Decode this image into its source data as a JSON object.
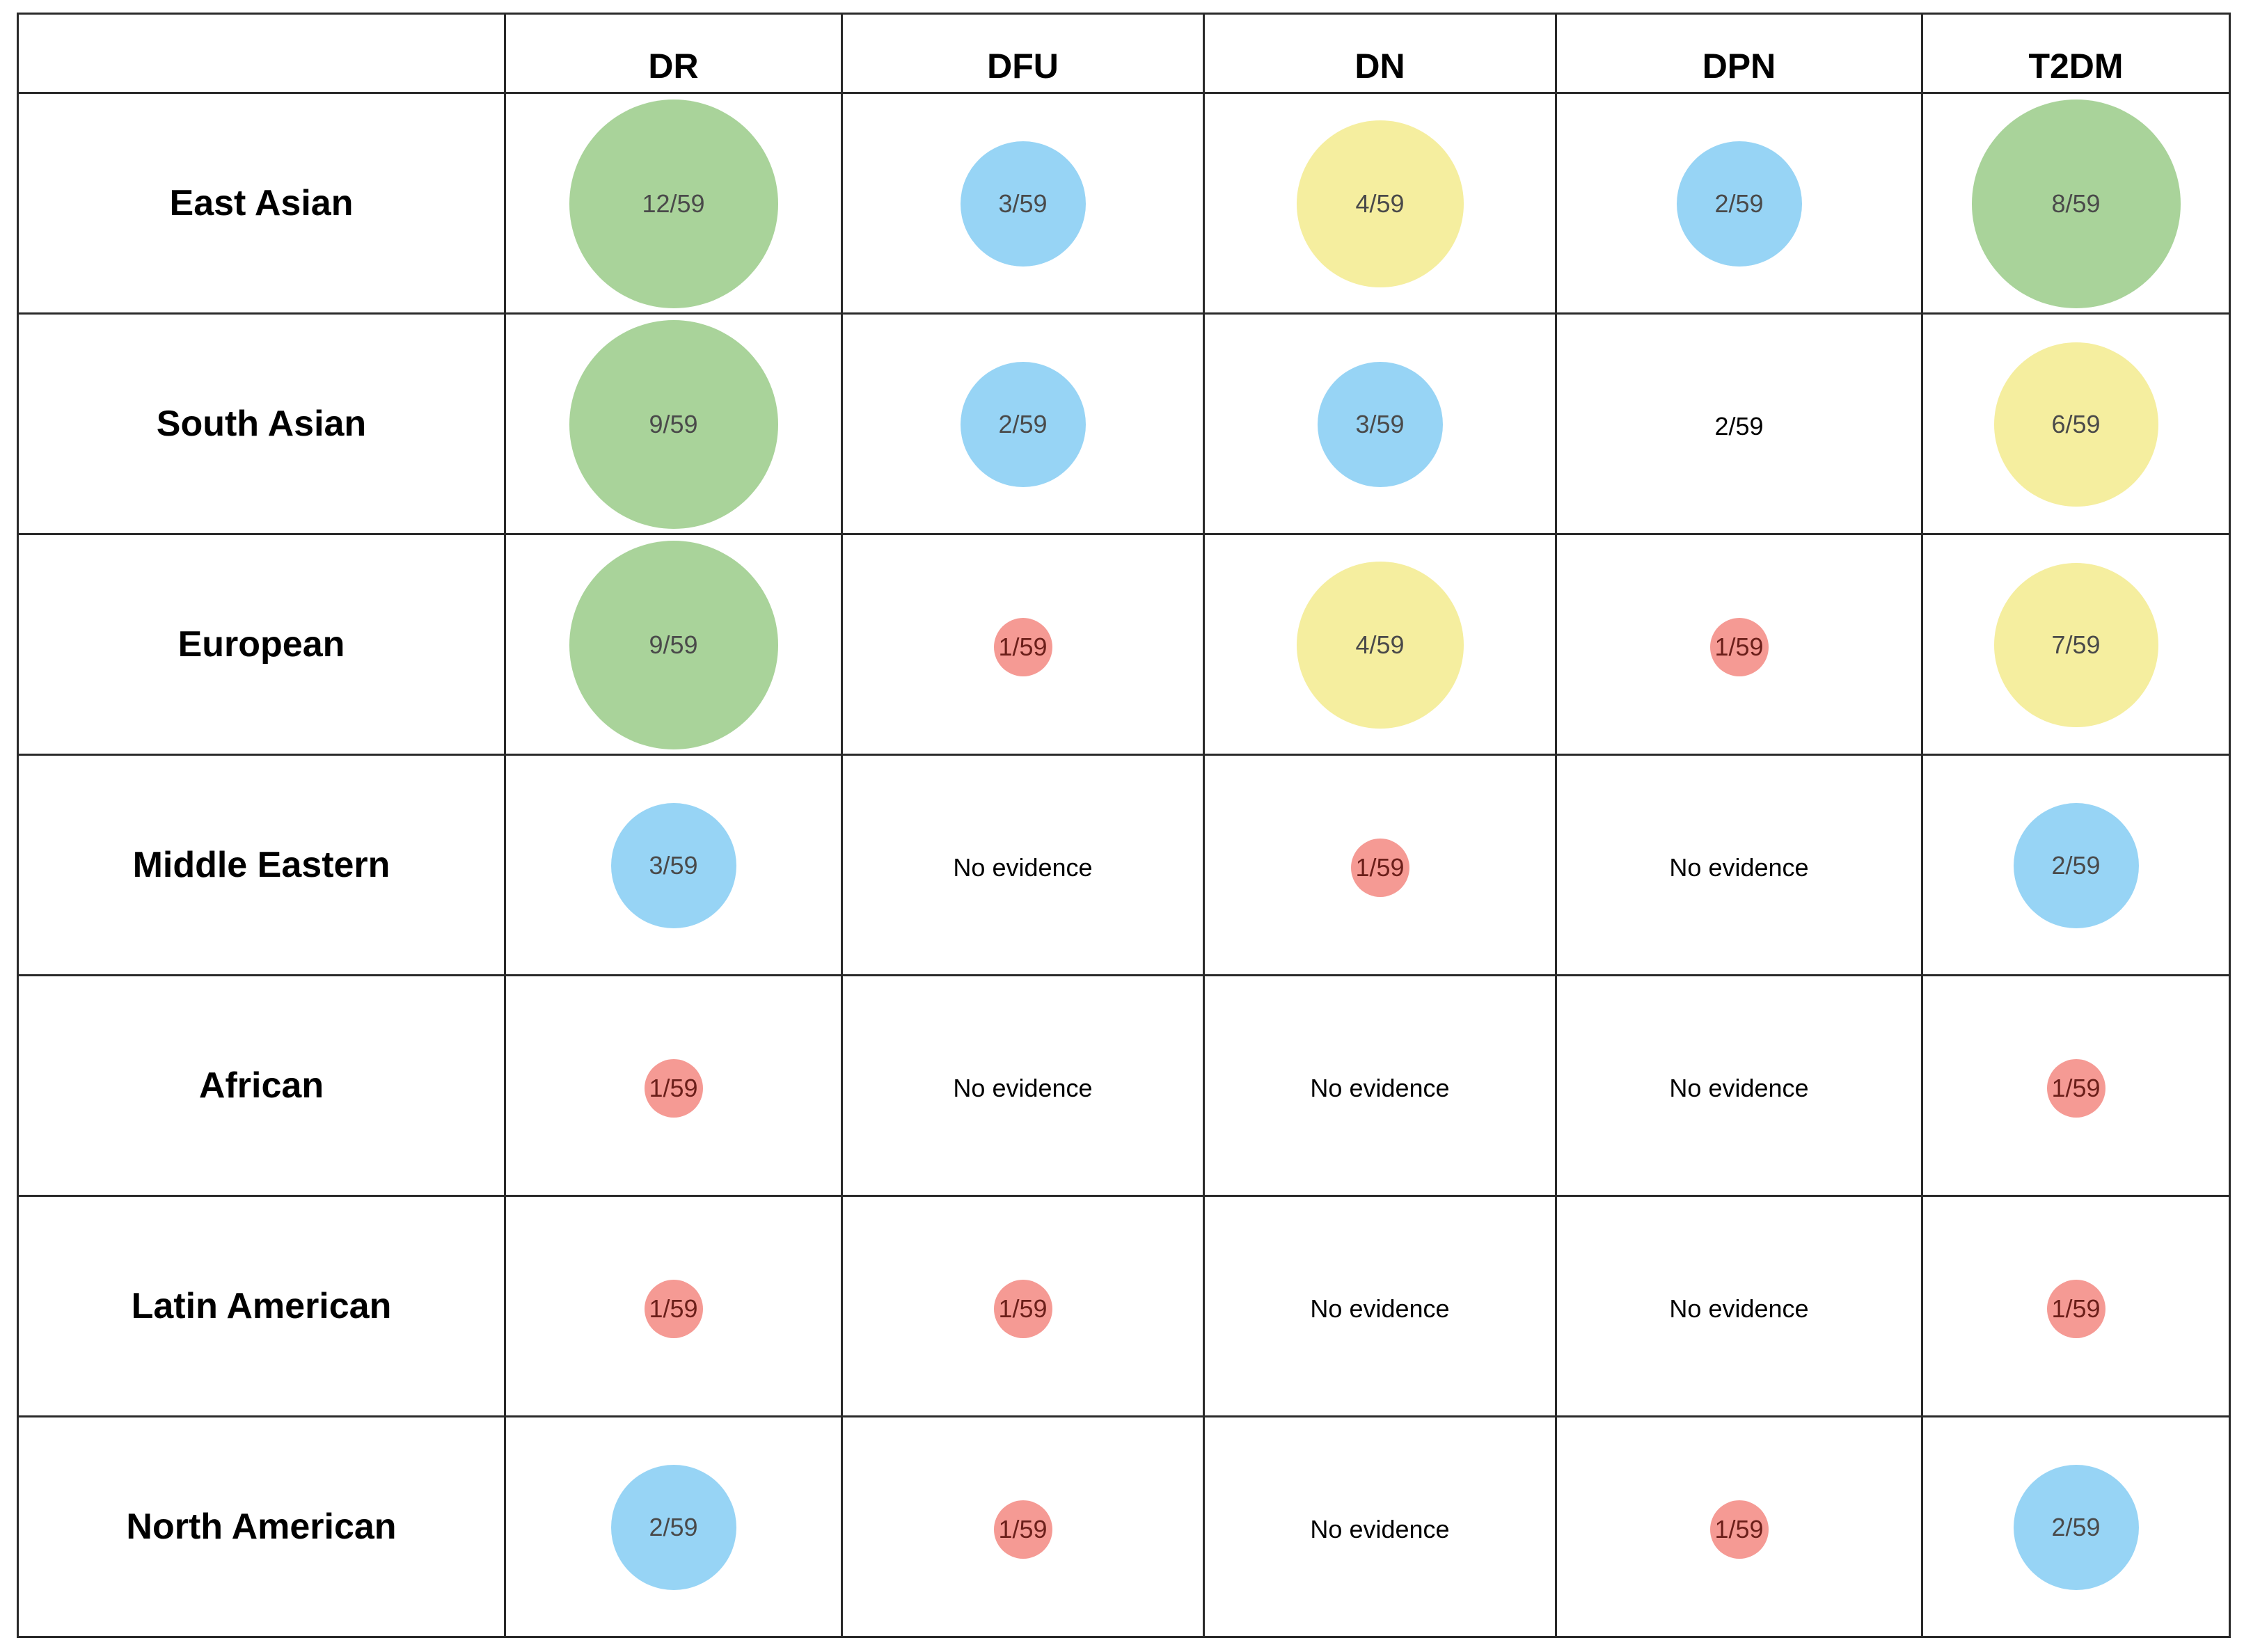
{
  "chart_data": {
    "type": "table",
    "corner": "",
    "columns": [
      "DR",
      "DFU",
      "DN",
      "DPN",
      "T2DM"
    ],
    "rows": [
      {
        "label": "East Asian",
        "cells": [
          {
            "value": 12,
            "text": "12/59",
            "color": "green"
          },
          {
            "value": 3,
            "text": "3/59",
            "color": "blue"
          },
          {
            "value": 4,
            "text": "4/59",
            "color": "yellow"
          },
          {
            "value": 2,
            "text": "2/59",
            "color": "blue"
          },
          {
            "value": 8,
            "text": "8/59",
            "color": "green"
          }
        ]
      },
      {
        "label": "South Asian",
        "cells": [
          {
            "value": 9,
            "text": "9/59",
            "color": "green"
          },
          {
            "value": 2,
            "text": "2/59",
            "color": "blue"
          },
          {
            "value": 3,
            "text": "3/59",
            "color": "blue"
          },
          {
            "value": 2,
            "text": "2/59",
            "color": "none"
          },
          {
            "value": 6,
            "text": "6/59",
            "color": "yellow"
          }
        ]
      },
      {
        "label": "European",
        "cells": [
          {
            "value": 9,
            "text": "9/59",
            "color": "green"
          },
          {
            "value": 1,
            "text": "1/59",
            "color": "red"
          },
          {
            "value": 4,
            "text": "4/59",
            "color": "yellow"
          },
          {
            "value": 1,
            "text": "1/59",
            "color": "red"
          },
          {
            "value": 7,
            "text": "7/59",
            "color": "yellow"
          }
        ]
      },
      {
        "label": "Middle Eastern",
        "cells": [
          {
            "value": 3,
            "text": "3/59",
            "color": "blue"
          },
          {
            "value": null,
            "text": "No evidence",
            "color": "none"
          },
          {
            "value": 1,
            "text": "1/59",
            "color": "red"
          },
          {
            "value": null,
            "text": "No evidence",
            "color": "none"
          },
          {
            "value": 2,
            "text": "2/59",
            "color": "blue"
          }
        ]
      },
      {
        "label": "African",
        "cells": [
          {
            "value": 1,
            "text": "1/59",
            "color": "red"
          },
          {
            "value": null,
            "text": "No evidence",
            "color": "none"
          },
          {
            "value": null,
            "text": "No evidence",
            "color": "none"
          },
          {
            "value": null,
            "text": "No evidence",
            "color": "none"
          },
          {
            "value": 1,
            "text": "1/59",
            "color": "red"
          }
        ]
      },
      {
        "label": "Latin American",
        "cells": [
          {
            "value": 1,
            "text": "1/59",
            "color": "red"
          },
          {
            "value": 1,
            "text": "1/59",
            "color": "red"
          },
          {
            "value": null,
            "text": "No evidence",
            "color": "none"
          },
          {
            "value": null,
            "text": "No evidence",
            "color": "none"
          },
          {
            "value": 1,
            "text": "1/59",
            "color": "red"
          }
        ]
      },
      {
        "label": "North American",
        "cells": [
          {
            "value": 2,
            "text": "2/59",
            "color": "blue"
          },
          {
            "value": 1,
            "text": "1/59",
            "color": "red"
          },
          {
            "value": null,
            "text": "No evidence",
            "color": "none"
          },
          {
            "value": 1,
            "text": "1/59",
            "color": "red"
          },
          {
            "value": 2,
            "text": "2/59",
            "color": "blue"
          }
        ]
      }
    ],
    "palette": {
      "green": "#a9d39a",
      "blue": "#97d4f5",
      "yellow": "#f5ee9f",
      "red": "#f59a94"
    }
  }
}
